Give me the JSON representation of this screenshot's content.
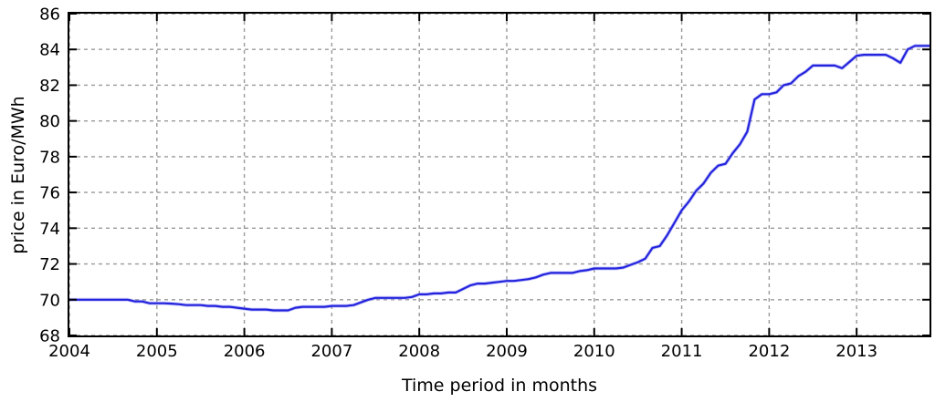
{
  "chart_data": {
    "type": "line",
    "title": "",
    "xlabel": "Time period in months",
    "ylabel": "price in Euro/MWh",
    "xlim": [
      2004,
      2013.8333
    ],
    "ylim": [
      68,
      86
    ],
    "xticks": [
      2004,
      2005,
      2006,
      2007,
      2008,
      2009,
      2010,
      2011,
      2012,
      2013
    ],
    "yticks": [
      68,
      70,
      72,
      74,
      76,
      78,
      80,
      82,
      84,
      86
    ],
    "grid": true,
    "grid_style": "dashed",
    "legend": "none",
    "colors": {
      "line": "#2323dd",
      "line_halo": "#8a8af5",
      "grid": "#999999",
      "axis": "#000000",
      "background": "#ffffff"
    },
    "x_start": 2004,
    "x_step_years": 0.0833333,
    "x_unit": "months",
    "series": [
      {
        "name": "price",
        "values": [
          70.0,
          70.0,
          70.0,
          70.0,
          70.0,
          70.0,
          70.0,
          70.0,
          70.0,
          69.9,
          69.9,
          69.8,
          69.8,
          69.8,
          69.78,
          69.75,
          69.7,
          69.7,
          69.7,
          69.65,
          69.65,
          69.6,
          69.6,
          69.55,
          69.5,
          69.45,
          69.45,
          69.45,
          69.4,
          69.4,
          69.4,
          69.55,
          69.6,
          69.6,
          69.6,
          69.6,
          69.65,
          69.65,
          69.65,
          69.7,
          69.85,
          70.0,
          70.1,
          70.1,
          70.1,
          70.1,
          70.1,
          70.15,
          70.3,
          70.3,
          70.35,
          70.35,
          70.4,
          70.4,
          70.6,
          70.8,
          70.9,
          70.9,
          70.95,
          71.0,
          71.05,
          71.05,
          71.1,
          71.15,
          71.25,
          71.4,
          71.5,
          71.5,
          71.5,
          71.5,
          71.6,
          71.65,
          71.75,
          71.75,
          71.75,
          71.75,
          71.8,
          71.95,
          72.1,
          72.3,
          72.9,
          73.0,
          73.6,
          74.3,
          75.0,
          75.5,
          76.1,
          76.5,
          77.1,
          77.5,
          77.6,
          78.2,
          78.7,
          79.4,
          81.2,
          81.5,
          81.5,
          81.6,
          82.0,
          82.1,
          82.5,
          82.75,
          83.1,
          83.1,
          83.1,
          83.1,
          82.95,
          83.3,
          83.65,
          83.7,
          83.7,
          83.7,
          83.7,
          83.5,
          83.25,
          84.0,
          84.2,
          84.2,
          84.2
        ]
      }
    ]
  }
}
